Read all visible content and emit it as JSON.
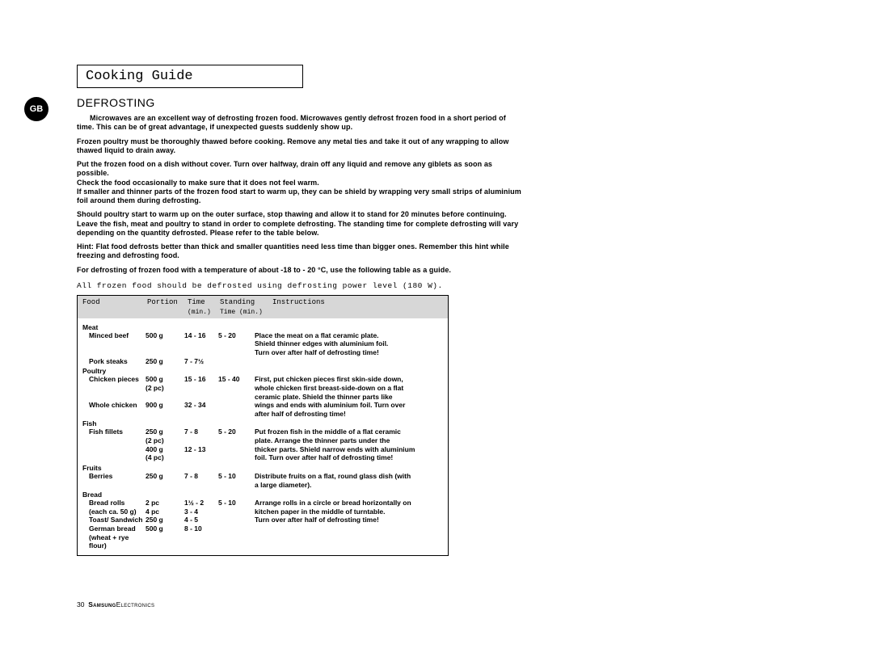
{
  "colors": {
    "bg": "#ffffff",
    "text": "#000000",
    "thead_bg": "#d7d7d7"
  },
  "badge": "GB",
  "title": "Cooking Guide",
  "heading": "DEFROSTING",
  "paragraphs": [
    "Microwaves are an excellent way of defrosting frozen food. Microwaves gently defrost frozen food in a short period of time. This can be of great advantage, if unexpected guests suddenly show up.",
    "Frozen poultry must be thoroughly thawed before cooking. Remove any metal ties and take it out of any wrapping to allow thawed liquid to drain away.",
    "Put the frozen food on a dish without cover. Turn over halfway, drain off any liquid and remove any giblets as soon as possible.\nCheck the food occasionally to make sure that it does not feel warm.\nIf smaller and thinner parts of the frozen food start to warm up, they can be shield by wrapping very small strips of aluminium foil around them during defrosting.",
    "Should poultry start to warm up on the outer surface, stop thawing and allow it to stand for 20 minutes before continuing.\nLeave the fish, meat and poultry to stand in order to complete defrosting. The standing time for complete defrosting will vary depending on the quantity defrosted. Please refer to the table below.",
    "Hint: Flat food defrosts better than thick and smaller quantities need less time than bigger ones. Remember this hint while freezing and defrosting food.",
    "For defrosting of frozen food with a temperature of about -18 to - 20 °C, use the following table as a guide."
  ],
  "mono_note": "All frozen food should be defrosted using defrosting power level (180 W).",
  "table": {
    "headers": {
      "food": "Food",
      "portion": "Portion",
      "time": "Time",
      "standing": "Standing",
      "instructions": "Instructions"
    },
    "subheaders": {
      "time": "(min.)",
      "standing": "Time (min.)"
    },
    "groups": [
      {
        "name": "Meat",
        "rows": [
          {
            "food": "Minced beef",
            "portion": "500 g",
            "time": "14 - 16",
            "standing": "5 - 20",
            "instr": "Place the meat on a flat ceramic plate.",
            "instr_cont": [
              "Shield thinner edges with aluminium foil.",
              "Turn over after half of defrosting time!"
            ]
          },
          {
            "food": "Pork steaks",
            "portion": "250 g",
            "time": "7 - 7½",
            "standing": "",
            "instr": "",
            "instr_cont": []
          }
        ]
      },
      {
        "name": "Poultry",
        "rows": [
          {
            "food": "Chicken pieces",
            "portion": "500 g",
            "portion2": "(2 pc)",
            "time": "15 - 16",
            "standing": "15 - 40",
            "instr": "First, put chicken pieces first skin-side down,",
            "instr_cont": [
              "whole chicken first breast-side-down on a flat",
              "ceramic plate. Shield the thinner parts like"
            ]
          },
          {
            "food": "Whole chicken",
            "portion": "900 g",
            "time": "32 - 34",
            "standing": "",
            "instr": "wings and ends with aluminium foil. Turn over",
            "instr_cont": [
              "after half of defrosting time!"
            ]
          }
        ]
      },
      {
        "name": "Fish",
        "rows": [
          {
            "food": "Fish fillets",
            "portion": "250 g",
            "portion2": "(2 pc)",
            "time": "7 - 8",
            "standing": "5 - 20",
            "instr": "Put frozen fish in the middle of a flat ceramic",
            "instr_cont": [
              "plate. Arrange the thinner parts under the"
            ]
          },
          {
            "food": "",
            "portion": "400 g",
            "portion2": "(4 pc)",
            "time": "12 - 13",
            "standing": "",
            "instr": "thicker parts. Shield narrow ends with aluminium",
            "instr_cont": [
              "foil. Turn over after half of defrosting time!"
            ]
          }
        ]
      },
      {
        "name": "Fruits",
        "rows": [
          {
            "food": "Berries",
            "portion": "250 g",
            "time": "7 - 8",
            "standing": "5 - 10",
            "instr": "Distribute fruits on a flat, round glass dish (with",
            "instr_cont": [
              "a large diameter)."
            ]
          }
        ]
      },
      {
        "name": "Bread",
        "rows": [
          {
            "food": "Bread rolls",
            "portion": "2 pc",
            "time": "1½ - 2",
            "standing": "5 - 10",
            "instr": "Arrange rolls in a circle or bread horizontally on",
            "instr_cont": []
          },
          {
            "food": "(each ca. 50 g)",
            "portion": "4 pc",
            "time": "3 - 4",
            "standing": "",
            "instr": "kitchen paper in the middle of turntable.",
            "instr_cont": []
          },
          {
            "food": "Toast/ Sandwich",
            "portion": "250 g",
            "time": "4 - 5",
            "standing": "",
            "instr": "Turn over after half of defrosting time!",
            "instr_cont": []
          },
          {
            "food": "German bread",
            "portion": "500 g",
            "time": "8 - 10",
            "standing": "",
            "instr": "",
            "instr_cont": []
          },
          {
            "food": "(wheat + rye flour)",
            "portion": "",
            "time": "",
            "standing": "",
            "instr": "",
            "instr_cont": []
          }
        ]
      }
    ]
  },
  "footer": {
    "page": "30",
    "brand1": "Samsung",
    "brand2": "Electronics"
  }
}
